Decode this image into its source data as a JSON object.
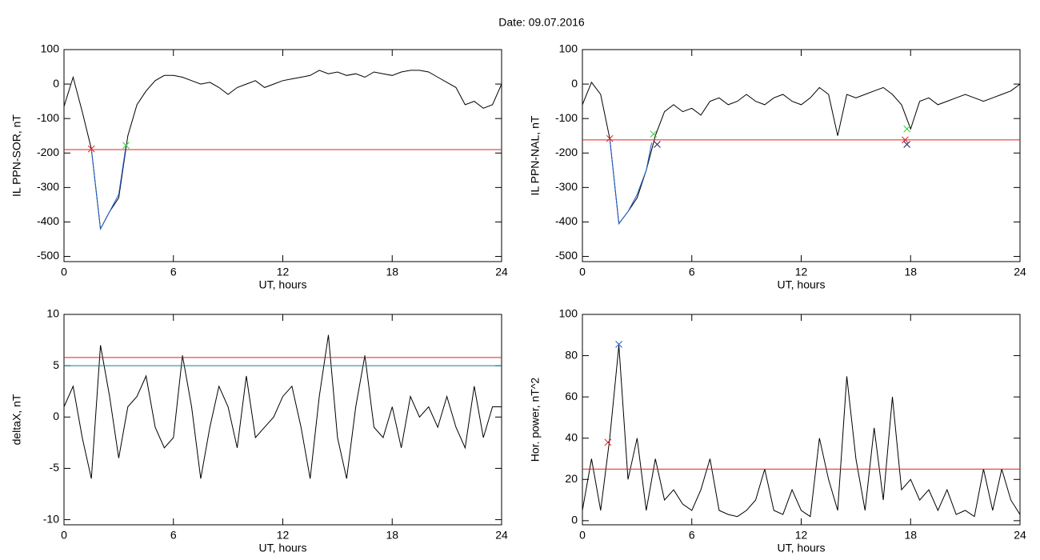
{
  "title": "Date:  09.07.2016",
  "chart_data": [
    {
      "type": "line",
      "xlabel": "UT, hours",
      "ylabel": "IL PPN-SOR, nT",
      "xlim": [
        0,
        24
      ],
      "xticks": [
        0,
        6,
        12,
        18,
        24
      ],
      "ylim": [
        -515,
        100
      ],
      "yticks": [
        -500,
        -400,
        -300,
        -200,
        -100,
        0,
        100
      ],
      "x": [
        0,
        0.5,
        1,
        1.5,
        2,
        2.5,
        3,
        3.5,
        4,
        4.5,
        5,
        5.5,
        6,
        6.5,
        7,
        7.5,
        8,
        8.5,
        9,
        9.5,
        10,
        10.5,
        11,
        11.5,
        12,
        12.5,
        13,
        13.5,
        14,
        14.5,
        15,
        15.5,
        16,
        16.5,
        17,
        17.5,
        18,
        18.5,
        19,
        19.5,
        20,
        20.5,
        21,
        21.5,
        22,
        22.5,
        23,
        23.5,
        24
      ],
      "series": [
        {
          "color": "#000000",
          "values": [
            -65,
            20,
            -80,
            -188,
            -420,
            -370,
            -330,
            -150,
            -60,
            -20,
            10,
            25,
            25,
            20,
            10,
            0,
            5,
            -10,
            -30,
            -10,
            0,
            10,
            -10,
            0,
            10,
            15,
            20,
            25,
            40,
            30,
            35,
            25,
            30,
            20,
            35,
            30,
            25,
            35,
            40,
            40,
            35,
            20,
            5,
            -10,
            -60,
            -50,
            -70,
            -60,
            0
          ]
        },
        {
          "color": "#1f5fd0",
          "x": [
            1.5,
            2,
            2.5,
            3,
            3.4
          ],
          "values": [
            -188,
            -420,
            -370,
            -320,
            -178
          ]
        }
      ],
      "hlines": [
        {
          "value": -190,
          "color": "#e02020"
        }
      ],
      "markers": [
        {
          "x": 1.5,
          "y": -188,
          "color": "#e02020"
        },
        {
          "x": 3.4,
          "y": -178,
          "color": "#30d030"
        }
      ]
    },
    {
      "type": "line",
      "xlabel": "UT, hours",
      "ylabel": "IL PPN-NAL, nT",
      "xlim": [
        0,
        24
      ],
      "xticks": [
        0,
        6,
        12,
        18,
        24
      ],
      "ylim": [
        -515,
        100
      ],
      "yticks": [
        -500,
        -400,
        -300,
        -200,
        -100,
        0,
        100
      ],
      "x": [
        0,
        0.5,
        1,
        1.5,
        2,
        2.5,
        3,
        3.5,
        4,
        4.5,
        5,
        5.5,
        6,
        6.5,
        7,
        7.5,
        8,
        8.5,
        9,
        9.5,
        10,
        10.5,
        11,
        11.5,
        12,
        12.5,
        13,
        13.5,
        14,
        14.5,
        15,
        15.5,
        16,
        16.5,
        17,
        17.5,
        18,
        18.5,
        19,
        19.5,
        20,
        20.5,
        21,
        21.5,
        22,
        22.5,
        23,
        23.5,
        24
      ],
      "series": [
        {
          "color": "#000000",
          "values": [
            -60,
            5,
            -30,
            -158,
            -405,
            -370,
            -330,
            -250,
            -150,
            -80,
            -60,
            -80,
            -70,
            -90,
            -50,
            -40,
            -60,
            -50,
            -30,
            -50,
            -60,
            -40,
            -30,
            -50,
            -60,
            -40,
            -10,
            -30,
            -150,
            -30,
            -40,
            -30,
            -20,
            -10,
            -30,
            -60,
            -130,
            -50,
            -40,
            -60,
            -50,
            -40,
            -30,
            -40,
            -50,
            -40,
            -30,
            -20,
            0
          ]
        },
        {
          "color": "#1f5fd0",
          "x": [
            1.5,
            2,
            2.5,
            3,
            3.5,
            3.8
          ],
          "values": [
            -158,
            -405,
            -370,
            -320,
            -250,
            -170
          ]
        }
      ],
      "hlines": [
        {
          "value": -162,
          "color": "#e02020"
        }
      ],
      "markers": [
        {
          "x": 1.5,
          "y": -158,
          "color": "#e02020"
        },
        {
          "x": 3.9,
          "y": -145,
          "color": "#30d030"
        },
        {
          "x": 4.1,
          "y": -175,
          "color": "#202060"
        },
        {
          "x": 17.7,
          "y": -162,
          "color": "#e02020"
        },
        {
          "x": 17.8,
          "y": -130,
          "color": "#30d030"
        },
        {
          "x": 17.8,
          "y": -175,
          "color": "#202060"
        }
      ]
    },
    {
      "type": "line",
      "xlabel": "UT, hours",
      "ylabel": "deltaX, nT",
      "xlim": [
        0,
        24
      ],
      "xticks": [
        0,
        6,
        12,
        18,
        24
      ],
      "ylim": [
        -10.5,
        10
      ],
      "yticks": [
        -10,
        -5,
        0,
        5,
        10
      ],
      "x": [
        0,
        0.5,
        1,
        1.5,
        2,
        2.5,
        3,
        3.5,
        4,
        4.5,
        5,
        5.5,
        6,
        6.5,
        7,
        7.5,
        8,
        8.5,
        9,
        9.5,
        10,
        10.5,
        11,
        11.5,
        12,
        12.5,
        13,
        13.5,
        14,
        14.5,
        15,
        15.5,
        16,
        16.5,
        17,
        17.5,
        18,
        18.5,
        19,
        19.5,
        20,
        20.5,
        21,
        21.5,
        22,
        22.5,
        23,
        23.5,
        24
      ],
      "series": [
        {
          "color": "#000000",
          "values": [
            1,
            3,
            -2,
            -6,
            7,
            2,
            -4,
            1,
            2,
            4,
            -1,
            -3,
            -2,
            6,
            1,
            -6,
            -1,
            3,
            1,
            -3,
            4,
            -2,
            -1,
            0,
            2,
            3,
            -1,
            -6,
            2,
            8,
            -2,
            -6,
            1,
            6,
            -1,
            -2,
            1,
            -3,
            2,
            0,
            1,
            -1,
            2,
            -1,
            -3,
            3,
            -2,
            1,
            1
          ]
        }
      ],
      "hlines": [
        {
          "value": 5.8,
          "color": "#e02020"
        },
        {
          "value": 5.0,
          "color": "#108080"
        }
      ],
      "markers": []
    },
    {
      "type": "line",
      "xlabel": "UT, hours",
      "ylabel": "Hor. power, nT^2",
      "xlim": [
        0,
        24
      ],
      "xticks": [
        0,
        6,
        12,
        18,
        24
      ],
      "ylim": [
        -2,
        100
      ],
      "yticks": [
        0,
        20,
        40,
        60,
        80,
        100
      ],
      "x": [
        0,
        0.5,
        1,
        1.5,
        2,
        2.5,
        3,
        3.5,
        4,
        4.5,
        5,
        5.5,
        6,
        6.5,
        7,
        7.5,
        8,
        8.5,
        9,
        9.5,
        10,
        10.5,
        11,
        11.5,
        12,
        12.5,
        13,
        13.5,
        14,
        14.5,
        15,
        15.5,
        16,
        16.5,
        17,
        17.5,
        18,
        18.5,
        19,
        19.5,
        20,
        20.5,
        21,
        21.5,
        22,
        22.5,
        23,
        23.5,
        24
      ],
      "series": [
        {
          "color": "#000000",
          "values": [
            5,
            30,
            5,
            40,
            85,
            20,
            40,
            5,
            30,
            10,
            15,
            8,
            5,
            15,
            30,
            5,
            3,
            2,
            5,
            10,
            25,
            5,
            3,
            15,
            5,
            2,
            40,
            20,
            5,
            70,
            30,
            5,
            45,
            10,
            60,
            15,
            20,
            10,
            15,
            5,
            15,
            3,
            5,
            2,
            25,
            5,
            25,
            10,
            3
          ]
        }
      ],
      "hlines": [
        {
          "value": 25,
          "color": "#e02020"
        }
      ],
      "markers": [
        {
          "x": 2,
          "y": 85.5,
          "color": "#1f5fd0"
        },
        {
          "x": 1.4,
          "y": 38,
          "color": "#e02020"
        }
      ]
    }
  ]
}
